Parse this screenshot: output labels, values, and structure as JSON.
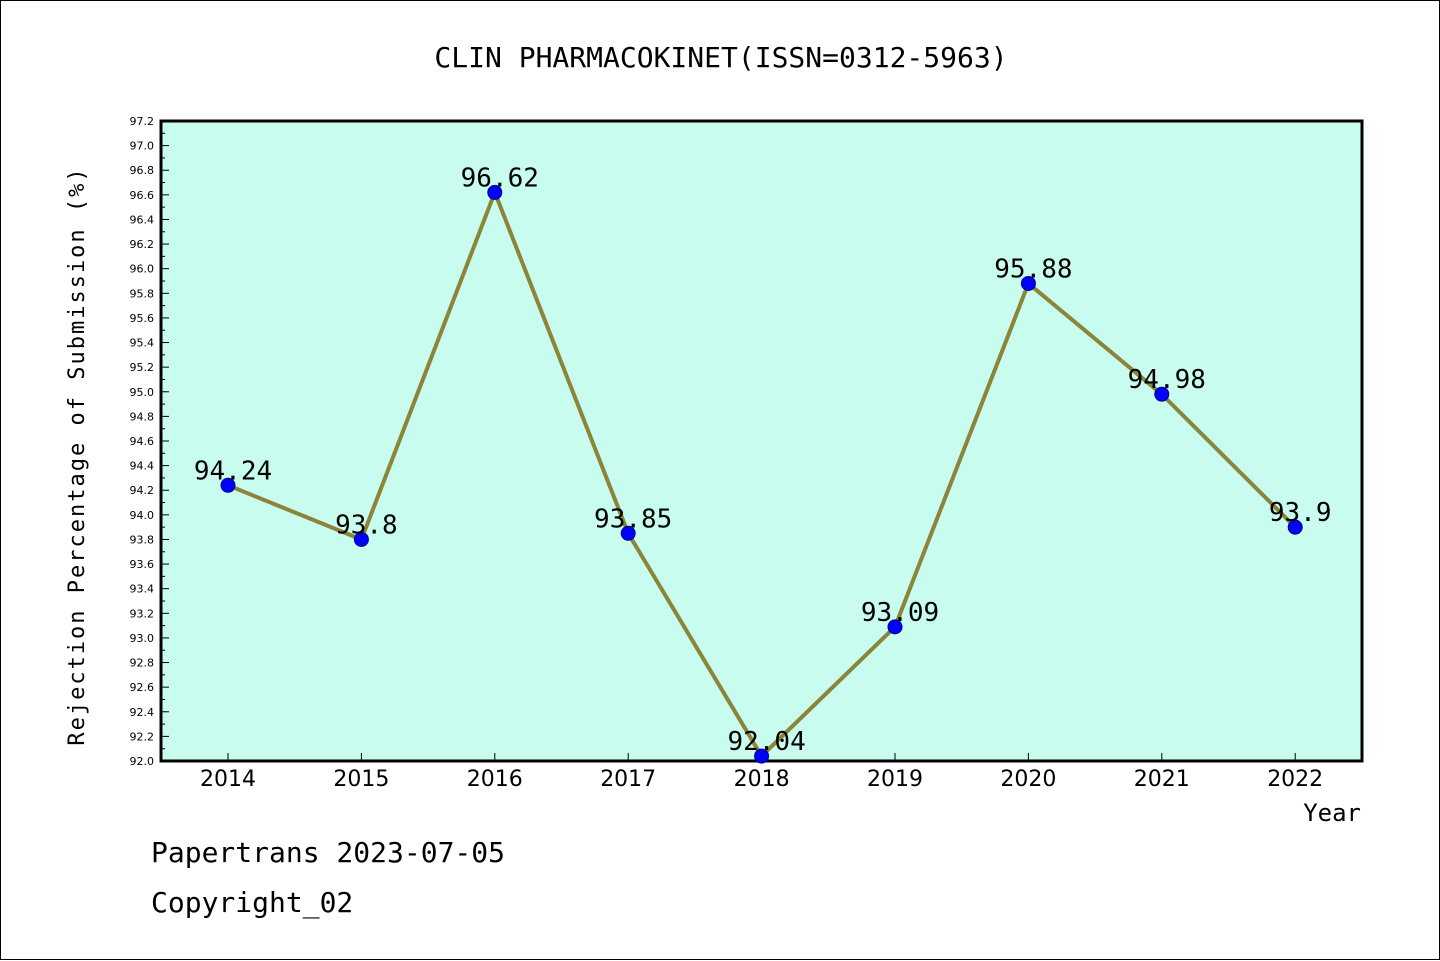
{
  "chart_data": {
    "type": "line",
    "title": "CLIN PHARMACOKINET(ISSN=0312-5963)",
    "xlabel": "Year",
    "ylabel": "Rejection Percentage of Submission (%)",
    "categories": [
      "2014",
      "2015",
      "2016",
      "2017",
      "2018",
      "2019",
      "2020",
      "2021",
      "2022"
    ],
    "series": [
      {
        "values": [
          94.24,
          93.8,
          96.62,
          93.85,
          92.04,
          93.09,
          95.88,
          94.98,
          93.9
        ],
        "data_labels": [
          "94.24",
          "93.8",
          "96.62",
          "93.85",
          "92.04",
          "93.09",
          "95.88",
          "94.98",
          "93.9"
        ]
      }
    ],
    "ylim": [
      92.0,
      97.2
    ],
    "yticks": [
      "92.0",
      "92.2",
      "92.4",
      "92.6",
      "92.8",
      "93.0",
      "93.2",
      "93.4",
      "93.6",
      "93.8",
      "94.0",
      "94.2",
      "94.4",
      "94.6",
      "94.8",
      "95.0",
      "95.2",
      "95.4",
      "95.6",
      "95.8",
      "96.0",
      "96.2",
      "96.4",
      "96.6",
      "96.8",
      "97.0",
      "97.2"
    ],
    "grid": false,
    "colors": {
      "plot_background": "#c8fcee",
      "line": "#8b8439",
      "marker": "#0000ff"
    }
  },
  "footer": {
    "line1": "Papertrans 2023-07-05",
    "line2": "Copyright_02"
  }
}
